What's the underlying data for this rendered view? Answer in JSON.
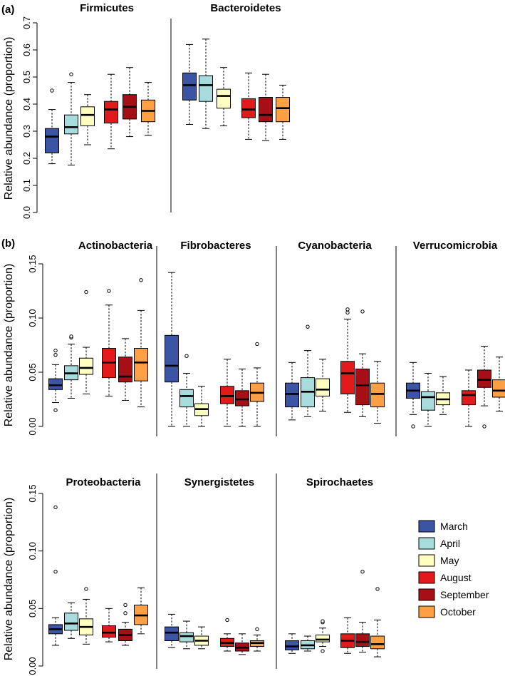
{
  "months": [
    "March",
    "April",
    "May",
    "August",
    "September",
    "October"
  ],
  "colors": [
    "#3b55a4",
    "#a8dcdc",
    "#ffffc0",
    "#e31a1c",
    "#a50f15",
    "#fd9f45"
  ],
  "legend": [
    "March",
    "April",
    "May",
    "August",
    "September",
    "October"
  ],
  "chart_data": [
    {
      "type": "box",
      "panel_label": "(a)",
      "ylabel": "Relative abundance (proportion)",
      "ylim": [
        0,
        0.7
      ],
      "ticks": [
        "0.0",
        "0.1",
        "0.2",
        "0.3",
        "0.4",
        "0.5",
        "0.6",
        "0.7"
      ],
      "facets": [
        {
          "title": "Firmicutes",
          "boxes": [
            {
              "month": "March",
              "wlo": 0.18,
              "q1": 0.22,
              "med": 0.28,
              "q3": 0.31,
              "whi": 0.38,
              "outliers": [
                0.45
              ]
            },
            {
              "month": "April",
              "wlo": 0.175,
              "q1": 0.29,
              "med": 0.315,
              "q3": 0.36,
              "whi": 0.48,
              "outliers": [
                0.51
              ]
            },
            {
              "month": "May",
              "wlo": 0.25,
              "q1": 0.32,
              "med": 0.36,
              "q3": 0.39,
              "whi": 0.435,
              "outliers": []
            },
            {
              "month": "August",
              "wlo": 0.235,
              "q1": 0.33,
              "med": 0.38,
              "q3": 0.41,
              "whi": 0.51,
              "outliers": []
            },
            {
              "month": "September",
              "wlo": 0.28,
              "q1": 0.345,
              "med": 0.39,
              "q3": 0.435,
              "whi": 0.535,
              "outliers": []
            },
            {
              "month": "October",
              "wlo": 0.285,
              "q1": 0.335,
              "med": 0.375,
              "q3": 0.415,
              "whi": 0.48,
              "outliers": []
            }
          ]
        },
        {
          "title": "Bacteroidetes",
          "boxes": [
            {
              "month": "March",
              "wlo": 0.325,
              "q1": 0.415,
              "med": 0.47,
              "q3": 0.515,
              "whi": 0.62,
              "outliers": []
            },
            {
              "month": "April",
              "wlo": 0.31,
              "q1": 0.41,
              "med": 0.47,
              "q3": 0.505,
              "whi": 0.64,
              "outliers": []
            },
            {
              "month": "May",
              "wlo": 0.32,
              "q1": 0.385,
              "med": 0.43,
              "q3": 0.455,
              "whi": 0.535,
              "outliers": []
            },
            {
              "month": "August",
              "wlo": 0.27,
              "q1": 0.35,
              "med": 0.38,
              "q3": 0.42,
              "whi": 0.515,
              "outliers": []
            },
            {
              "month": "September",
              "wlo": 0.265,
              "q1": 0.335,
              "med": 0.36,
              "q3": 0.425,
              "whi": 0.51,
              "outliers": []
            },
            {
              "month": "October",
              "wlo": 0.27,
              "q1": 0.335,
              "med": 0.385,
              "q3": 0.425,
              "whi": 0.47,
              "outliers": []
            }
          ]
        }
      ]
    },
    {
      "type": "box",
      "panel_label": "(b)",
      "ylabel": "Relative abundance (proportion)",
      "ylim": [
        0,
        0.15
      ],
      "ticks": [
        "0.00",
        "0.05",
        "0.10",
        "0.15"
      ],
      "facets": [
        {
          "title": "Actinobacteria",
          "boxes": [
            {
              "month": "March",
              "wlo": 0.022,
              "q1": 0.034,
              "med": 0.038,
              "q3": 0.044,
              "whi": 0.057,
              "outliers": [
                0.015,
                0.066,
                0.07
              ]
            },
            {
              "month": "April",
              "wlo": 0.026,
              "q1": 0.043,
              "med": 0.049,
              "q3": 0.056,
              "whi": 0.076,
              "outliers": [
                0.082,
                0.083
              ]
            },
            {
              "month": "May",
              "wlo": 0.03,
              "q1": 0.048,
              "med": 0.054,
              "q3": 0.063,
              "whi": 0.073,
              "outliers": [
                0.124
              ]
            },
            {
              "month": "August",
              "wlo": 0.028,
              "q1": 0.045,
              "med": 0.059,
              "q3": 0.072,
              "whi": 0.112,
              "outliers": [
                0.125
              ]
            },
            {
              "month": "September",
              "wlo": 0.024,
              "q1": 0.041,
              "med": 0.046,
              "q3": 0.064,
              "whi": 0.081,
              "outliers": []
            },
            {
              "month": "October",
              "wlo": 0.018,
              "q1": 0.042,
              "med": 0.059,
              "q3": 0.072,
              "whi": 0.107,
              "outliers": [
                0.135
              ]
            }
          ]
        },
        {
          "title": "Fibrobacteres",
          "boxes": [
            {
              "month": "March",
              "wlo": 0.0,
              "q1": 0.041,
              "med": 0.056,
              "q3": 0.084,
              "whi": 0.142,
              "outliers": []
            },
            {
              "month": "April",
              "wlo": 0.0,
              "q1": 0.018,
              "med": 0.028,
              "q3": 0.034,
              "whi": 0.049,
              "outliers": [
                0.065
              ]
            },
            {
              "month": "May",
              "wlo": 0.0,
              "q1": 0.01,
              "med": 0.016,
              "q3": 0.021,
              "whi": 0.037,
              "outliers": []
            },
            {
              "month": "August",
              "wlo": 0.0,
              "q1": 0.021,
              "med": 0.028,
              "q3": 0.037,
              "whi": 0.062,
              "outliers": []
            },
            {
              "month": "September",
              "wlo": 0.0,
              "q1": 0.019,
              "med": 0.025,
              "q3": 0.033,
              "whi": 0.053,
              "outliers": []
            },
            {
              "month": "October",
              "wlo": 0.0,
              "q1": 0.023,
              "med": 0.031,
              "q3": 0.04,
              "whi": 0.054,
              "outliers": [
                0.076
              ]
            }
          ]
        },
        {
          "title": "Cyanobacteria",
          "boxes": [
            {
              "month": "March",
              "wlo": 0.006,
              "q1": 0.018,
              "med": 0.03,
              "q3": 0.04,
              "whi": 0.059,
              "outliers": []
            },
            {
              "month": "April",
              "wlo": 0.009,
              "q1": 0.018,
              "med": 0.032,
              "q3": 0.045,
              "whi": 0.07,
              "outliers": [
                0.092
              ]
            },
            {
              "month": "May",
              "wlo": 0.014,
              "q1": 0.028,
              "med": 0.034,
              "q3": 0.044,
              "whi": 0.062,
              "outliers": []
            },
            {
              "month": "August",
              "wlo": 0.013,
              "q1": 0.03,
              "med": 0.049,
              "q3": 0.06,
              "whi": 0.099,
              "outliers": [
                0.105,
                0.108
              ]
            },
            {
              "month": "September",
              "wlo": 0.009,
              "q1": 0.02,
              "med": 0.038,
              "q3": 0.053,
              "whi": 0.067,
              "outliers": [
                0.106
              ]
            },
            {
              "month": "October",
              "wlo": 0.003,
              "q1": 0.018,
              "med": 0.03,
              "q3": 0.04,
              "whi": 0.06,
              "outliers": []
            }
          ]
        },
        {
          "title": "Verrucomicrobia",
          "boxes": [
            {
              "month": "March",
              "wlo": 0.011,
              "q1": 0.026,
              "med": 0.033,
              "q3": 0.04,
              "whi": 0.059,
              "outliers": [
                0.0
              ]
            },
            {
              "month": "April",
              "wlo": 0.0,
              "q1": 0.015,
              "med": 0.027,
              "q3": 0.032,
              "whi": 0.049,
              "outliers": []
            },
            {
              "month": "May",
              "wlo": 0.011,
              "q1": 0.02,
              "med": 0.025,
              "q3": 0.031,
              "whi": 0.046,
              "outliers": []
            },
            {
              "month": "August",
              "wlo": 0.0,
              "q1": 0.02,
              "med": 0.029,
              "q3": 0.033,
              "whi": 0.052,
              "outliers": []
            },
            {
              "month": "September",
              "wlo": 0.019,
              "q1": 0.036,
              "med": 0.043,
              "q3": 0.052,
              "whi": 0.074,
              "outliers": [
                0.0
              ]
            },
            {
              "month": "October",
              "wlo": 0.014,
              "q1": 0.027,
              "med": 0.033,
              "q3": 0.043,
              "whi": 0.064,
              "outliers": []
            }
          ]
        }
      ]
    },
    {
      "type": "box",
      "panel_label": "",
      "ylabel": "Relative abundance (proportion)",
      "ylim": [
        0,
        0.15
      ],
      "ticks": [
        "0.00",
        "0.05",
        "0.10",
        "0.15"
      ],
      "facets": [
        {
          "title": "Proteobacteria",
          "boxes": [
            {
              "month": "March",
              "wlo": 0.018,
              "q1": 0.028,
              "med": 0.032,
              "q3": 0.036,
              "whi": 0.042,
              "outliers": [
                0.082,
                0.138
              ]
            },
            {
              "month": "April",
              "wlo": 0.024,
              "q1": 0.031,
              "med": 0.037,
              "q3": 0.046,
              "whi": 0.055,
              "outliers": []
            },
            {
              "month": "May",
              "wlo": 0.019,
              "q1": 0.027,
              "med": 0.034,
              "q3": 0.041,
              "whi": 0.058,
              "outliers": [
                0.067
              ]
            },
            {
              "month": "August",
              "wlo": 0.021,
              "q1": 0.025,
              "med": 0.029,
              "q3": 0.035,
              "whi": 0.05,
              "outliers": []
            },
            {
              "month": "September",
              "wlo": 0.018,
              "q1": 0.022,
              "med": 0.027,
              "q3": 0.032,
              "whi": 0.038,
              "outliers": [
                0.046,
                0.053
              ]
            },
            {
              "month": "October",
              "wlo": 0.028,
              "q1": 0.036,
              "med": 0.044,
              "q3": 0.053,
              "whi": 0.068,
              "outliers": []
            }
          ]
        },
        {
          "title": "Synergistetes",
          "boxes": [
            {
              "month": "March",
              "wlo": 0.016,
              "q1": 0.022,
              "med": 0.029,
              "q3": 0.034,
              "whi": 0.045,
              "outliers": []
            },
            {
              "month": "April",
              "wlo": 0.015,
              "q1": 0.021,
              "med": 0.026,
              "q3": 0.029,
              "whi": 0.039,
              "outliers": []
            },
            {
              "month": "May",
              "wlo": 0.015,
              "q1": 0.018,
              "med": 0.022,
              "q3": 0.026,
              "whi": 0.034,
              "outliers": []
            },
            {
              "month": "August",
              "wlo": 0.013,
              "q1": 0.017,
              "med": 0.02,
              "q3": 0.024,
              "whi": 0.028,
              "outliers": [
                0.04
              ]
            },
            {
              "month": "September",
              "wlo": 0.01,
              "q1": 0.013,
              "med": 0.016,
              "q3": 0.02,
              "whi": 0.028,
              "outliers": []
            },
            {
              "month": "October",
              "wlo": 0.013,
              "q1": 0.017,
              "med": 0.02,
              "q3": 0.022,
              "whi": 0.027,
              "outliers": [
                0.032
              ]
            }
          ]
        },
        {
          "title": "Spirochaetes",
          "boxes": [
            {
              "month": "March",
              "wlo": 0.011,
              "q1": 0.014,
              "med": 0.017,
              "q3": 0.022,
              "whi": 0.028,
              "outliers": []
            },
            {
              "month": "April",
              "wlo": 0.013,
              "q1": 0.015,
              "med": 0.018,
              "q3": 0.022,
              "whi": 0.026,
              "outliers": []
            },
            {
              "month": "May",
              "wlo": 0.017,
              "q1": 0.021,
              "med": 0.023,
              "q3": 0.027,
              "whi": 0.033,
              "outliers": [
                0.013,
                0.038,
                0.039
              ]
            },
            {
              "month": "August",
              "wlo": 0.011,
              "q1": 0.016,
              "med": 0.022,
              "q3": 0.028,
              "whi": 0.042,
              "outliers": []
            },
            {
              "month": "September",
              "wlo": 0.012,
              "q1": 0.017,
              "med": 0.021,
              "q3": 0.028,
              "whi": 0.038,
              "outliers": [
                0.082
              ]
            },
            {
              "month": "October",
              "wlo": 0.008,
              "q1": 0.015,
              "med": 0.019,
              "q3": 0.026,
              "whi": 0.04,
              "outliers": [
                0.067
              ]
            }
          ]
        }
      ]
    }
  ]
}
